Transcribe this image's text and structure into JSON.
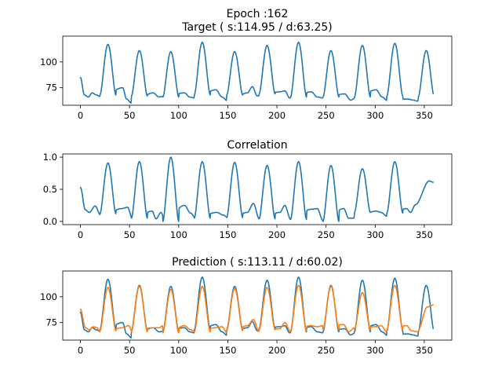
{
  "chart_data": [
    {
      "type": "line",
      "title": "Epoch :162\nTarget ( s:114.95 / d:63.25)",
      "xlabel": "",
      "ylabel": "",
      "xlim": [
        -18,
        378
      ],
      "ylim": [
        58,
        125
      ],
      "x_ticks": [
        0,
        50,
        100,
        150,
        200,
        250,
        300,
        350
      ],
      "y_ticks": [
        75,
        100
      ],
      "grid": false,
      "colors": [
        "#1f77b4"
      ],
      "peaks": [
        [
          28,
          117,
          16,
          68
        ],
        [
          60,
          111,
          16,
          67
        ],
        [
          92,
          110,
          16,
          66
        ],
        [
          124,
          119,
          16,
          68
        ],
        [
          157,
          110,
          16,
          68
        ],
        [
          190,
          116,
          16,
          69
        ],
        [
          222,
          119,
          16,
          66
        ],
        [
          255,
          111,
          16,
          66
        ],
        [
          287,
          116,
          16,
          66
        ],
        [
          320,
          118,
          16,
          67
        ],
        [
          352,
          111,
          16,
          66
        ]
      ],
      "series": [
        {
          "x_start": 0,
          "x_end": 359,
          "anchors": [
            [
              0,
              85
            ],
            [
              4,
              68
            ],
            [
              8,
              66
            ],
            [
              12,
              70
            ],
            [
              16,
              68
            ],
            [
              21,
              66
            ],
            [
              43,
              75
            ],
            [
              47,
              64
            ],
            [
              52,
              60
            ],
            [
              74,
              70
            ],
            [
              80,
              66
            ],
            [
              86,
              67
            ],
            [
              106,
              70
            ],
            [
              111,
              66
            ],
            [
              116,
              65
            ],
            [
              138,
              73
            ],
            [
              144,
              66
            ],
            [
              150,
              62
            ],
            [
              170,
              70
            ],
            [
              175,
              76
            ],
            [
              180,
              67
            ],
            [
              203,
              71
            ],
            [
              208,
              72
            ],
            [
              213,
              65
            ],
            [
              235,
              71
            ],
            [
              241,
              66
            ],
            [
              247,
              65
            ],
            [
              269,
              69
            ],
            [
              275,
              63
            ],
            [
              280,
              65
            ],
            [
              301,
              73
            ],
            [
              307,
              66
            ],
            [
              313,
              62
            ],
            [
              333,
              64
            ],
            [
              339,
              63
            ],
            [
              343,
              62
            ],
            [
              359,
              81
            ]
          ]
        }
      ]
    },
    {
      "type": "line",
      "title": "Correlation",
      "xlabel": "",
      "ylabel": "",
      "xlim": [
        -18,
        378
      ],
      "ylim": [
        -0.05,
        1.05
      ],
      "x_ticks": [
        0,
        50,
        100,
        150,
        200,
        250,
        300,
        350
      ],
      "y_ticks": [
        0.0,
        0.5,
        1.0
      ],
      "y_tick_labels": [
        "0.0",
        "0.5",
        "1.0"
      ],
      "grid": false,
      "colors": [
        "#1f77b4"
      ],
      "peaks": [
        [
          28,
          0.91,
          16,
          0.12
        ],
        [
          60,
          0.93,
          16,
          0.05
        ],
        [
          92,
          1.0,
          16,
          0.0
        ],
        [
          124,
          0.93,
          16,
          0.05
        ],
        [
          157,
          0.92,
          16,
          0.06
        ],
        [
          190,
          0.87,
          16,
          0.04
        ],
        [
          222,
          0.93,
          16,
          0.03
        ],
        [
          255,
          0.87,
          16,
          0.0
        ],
        [
          287,
          0.82,
          16,
          0.14
        ],
        [
          320,
          0.93,
          16,
          0.13
        ]
      ],
      "series": [
        {
          "x_start": 0,
          "x_end": 359,
          "anchors": [
            [
              0,
              0.53
            ],
            [
              5,
              0.18
            ],
            [
              9,
              0.14
            ],
            [
              15,
              0.24
            ],
            [
              21,
              0.08
            ],
            [
              42,
              0.2
            ],
            [
              48,
              0.22
            ],
            [
              53,
              0.04
            ],
            [
              73,
              0.16
            ],
            [
              77,
              0.04
            ],
            [
              82,
              0.14
            ],
            [
              86,
              0.02
            ],
            [
              106,
              0.25
            ],
            [
              112,
              0.13
            ],
            [
              117,
              0.06
            ],
            [
              139,
              0.14
            ],
            [
              145,
              0.1
            ],
            [
              151,
              0.05
            ],
            [
              170,
              0.14
            ],
            [
              176,
              0.28
            ],
            [
              182,
              0.04
            ],
            [
              203,
              0.14
            ],
            [
              208,
              0.25
            ],
            [
              214,
              0.03
            ],
            [
              235,
              0.19
            ],
            [
              241,
              0.2
            ],
            [
              247,
              0.01
            ],
            [
              268,
              0.2
            ],
            [
              273,
              0.05
            ],
            [
              279,
              0.05
            ],
            [
              301,
              0.16
            ],
            [
              306,
              0.14
            ],
            [
              312,
              0.08
            ],
            [
              332,
              0.2
            ],
            [
              336,
              0.14
            ],
            [
              341,
              0.26
            ],
            [
              355,
              0.63
            ],
            [
              359,
              0.61
            ]
          ]
        }
      ]
    },
    {
      "type": "line",
      "title": "Prediction ( s:113.11 / d:60.02)",
      "xlabel": "",
      "ylabel": "",
      "xlim": [
        -18,
        378
      ],
      "ylim": [
        58,
        125
      ],
      "x_ticks": [
        0,
        50,
        100,
        150,
        200,
        250,
        300,
        350
      ],
      "y_ticks": [
        75,
        100
      ],
      "grid": false,
      "colors": [
        "#1f77b4",
        "#ff7f0e"
      ],
      "series": [
        {
          "source": "target",
          "x_start": 0,
          "x_end": 359
        },
        {
          "x_start": 0,
          "x_end": 359,
          "peaks": [
            [
              28,
              109,
              16,
              67
            ],
            [
              60,
              110,
              16,
              66
            ],
            [
              92,
              107,
              16,
              65
            ],
            [
              124,
              110,
              16,
              66
            ],
            [
              157,
              108,
              16,
              67
            ],
            [
              190,
              109,
              16,
              68
            ],
            [
              222,
              111,
              16,
              67
            ],
            [
              255,
              110,
              16,
              68
            ],
            [
              287,
              104,
              16,
              68
            ],
            [
              320,
              111,
              16,
              68
            ]
          ],
          "anchors": [
            [
              0,
              88
            ],
            [
              5,
              70
            ],
            [
              9,
              68
            ],
            [
              13,
              71
            ],
            [
              17,
              70
            ],
            [
              21,
              64
            ],
            [
              43,
              70
            ],
            [
              49,
              72
            ],
            [
              53,
              66
            ],
            [
              74,
              70
            ],
            [
              80,
              70
            ],
            [
              84,
              72
            ],
            [
              88,
              63
            ],
            [
              106,
              72
            ],
            [
              112,
              68
            ],
            [
              117,
              66
            ],
            [
              138,
              70
            ],
            [
              144,
              71
            ],
            [
              150,
              64
            ],
            [
              170,
              72
            ],
            [
              176,
              78
            ],
            [
              182,
              66
            ],
            [
              203,
              69
            ],
            [
              208,
              75
            ],
            [
              214,
              66
            ],
            [
              235,
              72
            ],
            [
              241,
              71
            ],
            [
              247,
              72
            ],
            [
              268,
              73
            ],
            [
              273,
              66
            ],
            [
              279,
              70
            ],
            [
              301,
              71
            ],
            [
              306,
              72
            ],
            [
              312,
              66
            ],
            [
              332,
              72
            ],
            [
              337,
              67
            ],
            [
              343,
              66
            ],
            [
              353,
              90
            ],
            [
              359,
              92
            ]
          ]
        }
      ]
    }
  ]
}
